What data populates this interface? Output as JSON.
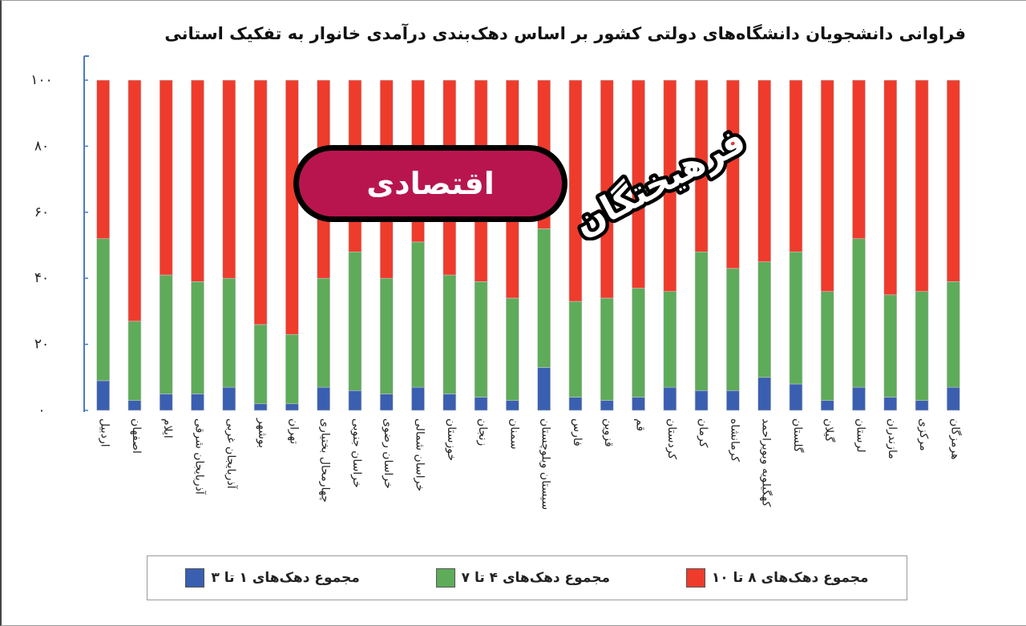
{
  "title": "فراوانی دانشجویان دانشگاه‌های دولتی کشور بر اساس دهک‌بندی درآمدی خانوار به تفکیک استانی",
  "badge": {
    "text": "اقتصادی"
  },
  "logo": {
    "text": "فرهیختگان"
  },
  "colors": {
    "blue": "#3a5fb0",
    "green": "#5eab5a",
    "red": "#ee3b2c",
    "axis": "#4a7bbf"
  },
  "legend": [
    {
      "label": "مجموع دهک‌های ۸ تا ۱۰",
      "color": "#ee3b2c"
    },
    {
      "label": "مجموع دهک‌های ۴ تا ۷",
      "color": "#5eab5a"
    },
    {
      "label": "مجموع دهک‌های ۱ تا ۳",
      "color": "#3a5fb0"
    }
  ],
  "chart_data": {
    "type": "bar",
    "stacked": true,
    "title": "فراوانی دانشجویان دانشگاه‌های دولتی کشور بر اساس دهک‌بندی درآمدی خانوار به تفکیک استانی",
    "ylim": [
      0,
      100
    ],
    "yticks": [
      0,
      20,
      40,
      60,
      80,
      100
    ],
    "ytick_labels": [
      "۰",
      "۲۰",
      "۴۰",
      "۶۰",
      "۸۰",
      "۱۰۰"
    ],
    "legend_position": "bottom",
    "categories": [
      "اردبیل",
      "اصفهان",
      "ایلام",
      "آذربایجان شرقی",
      "آذربایجان غربی",
      "بوشهر",
      "تهران",
      "چهارمحال بختیاری",
      "خراسان جنوبی",
      "خراسان رضوی",
      "خراسان شمالی",
      "خوزستان",
      "زنجان",
      "سمنان",
      "سیستان وبلوچستان",
      "فارس",
      "قزوین",
      "قم",
      "کردستان",
      "کرمان",
      "کرمانشاه",
      "کهگیلویه وبویراحمد",
      "گلستان",
      "گیلان",
      "لرستان",
      "مازندران",
      "مرکزی",
      "هرمزگان"
    ],
    "series": [
      {
        "name": "مجموع دهک‌های ۱ تا ۳",
        "values": [
          9,
          3,
          5,
          5,
          7,
          2,
          2,
          7,
          6,
          5,
          7,
          5,
          4,
          3,
          13,
          4,
          3,
          4,
          7,
          6,
          6,
          10,
          8,
          3,
          7,
          4,
          3,
          7
        ]
      },
      {
        "name": "مجموع دهک‌های ۴ تا ۷",
        "values": [
          43,
          24,
          36,
          34,
          33,
          24,
          21,
          33,
          42,
          35,
          44,
          36,
          35,
          31,
          42,
          29,
          31,
          33,
          29,
          42,
          37,
          35,
          40,
          33,
          45,
          31,
          33,
          32
        ]
      },
      {
        "name": "مجموع دهک‌های ۸ تا ۱۰",
        "values": [
          48,
          73,
          59,
          61,
          60,
          74,
          77,
          60,
          52,
          60,
          49,
          59,
          61,
          66,
          45,
          67,
          66,
          63,
          64,
          52,
          57,
          55,
          52,
          64,
          48,
          65,
          64,
          61
        ]
      }
    ]
  }
}
